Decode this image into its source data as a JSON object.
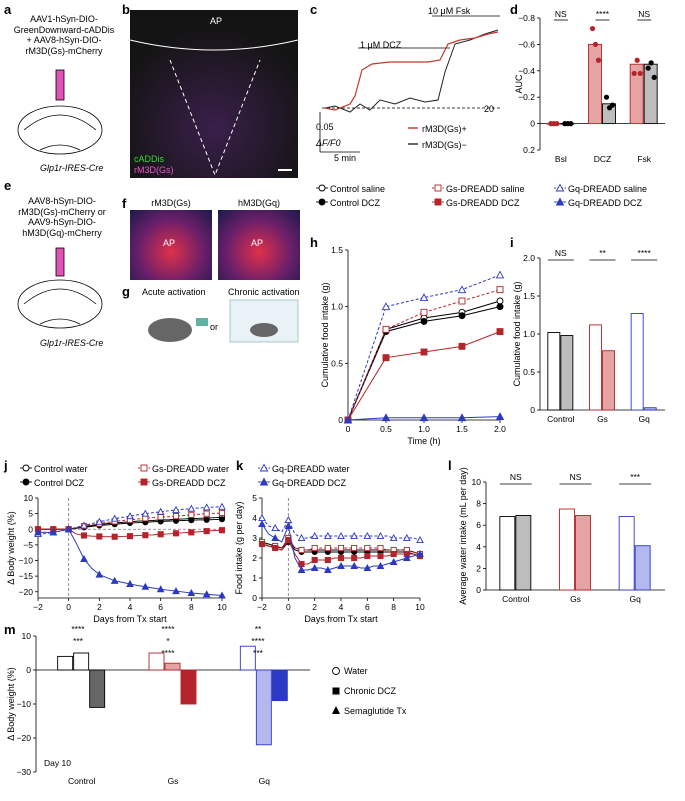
{
  "panel_letters": [
    "a",
    "b",
    "c",
    "d",
    "e",
    "f",
    "g",
    "h",
    "i",
    "j",
    "k",
    "l",
    "m"
  ],
  "a": {
    "virus_lines": [
      "AAV1-hSyn-DIO-",
      "GreenDownward-cADDis",
      "+ AAV8-hSyn-DIO-",
      "rM3D(Gs)-mCherry"
    ],
    "mouse": "Glp1r-IRES-Cre"
  },
  "b": {
    "region": "AP",
    "label1": "cADDis",
    "label2": "rM3D(Gs)"
  },
  "c": {
    "dcz_label": "1 μM DCZ",
    "fsk_label": "10 μM Fsk",
    "scale_y": "0.05",
    "scale_unit": "ΔF/F0",
    "scale_x": "5 min",
    "legend": [
      "rM3D(Gs)+",
      "rM3D(Gs)−"
    ],
    "right_tick": "20",
    "colors": {
      "pos": "#c0392b",
      "neg": "#222222"
    }
  },
  "d": {
    "ylabel": "AUC",
    "yticks": [
      "−0.8",
      "−0.6",
      "−0.4",
      "−0.2",
      "0",
      "0.2"
    ],
    "categories": [
      "Bsl",
      "DCZ",
      "Fsk"
    ],
    "sig": [
      "NS",
      "****",
      "NS"
    ],
    "bars_pos": [
      0.0,
      -0.6,
      -0.45
    ],
    "bars_neg": [
      0.0,
      -0.15,
      -0.45
    ],
    "points_pos": [
      [
        0,
        0,
        0
      ],
      [
        -0.72,
        -0.6,
        -0.48
      ],
      [
        -0.38,
        -0.48,
        -0.38
      ]
    ],
    "points_neg": [
      [
        0,
        0,
        0
      ],
      [
        -0.2,
        -0.12,
        -0.14
      ],
      [
        -0.42,
        -0.46,
        -0.35
      ]
    ]
  },
  "e": {
    "virus_lines": [
      "AAV8-hSyn-DIO-",
      "rM3D(Gs)-mCherry or",
      "AAV9-hSyn-DIO-",
      "hM3D(Gq)-mCherry"
    ],
    "mouse": "Glp1r-IRES-Cre"
  },
  "f": {
    "titles": [
      "rM3D(Gs)",
      "hM3D(Gq)"
    ],
    "region": "AP"
  },
  "g": {
    "acute": "Acute activation",
    "or": "or",
    "chronic": "Chronic activation"
  },
  "legend_hi": [
    "Control saline",
    "Control DCZ",
    "Gs-DREADD saline",
    "Gs-DREADD DCZ",
    "Gq-DREADD saline",
    "Gq-DREADD DCZ"
  ],
  "h": {
    "ylabel": "Cumulative food intake (g)",
    "xlabel": "Time (h)",
    "xticks": [
      "0",
      "0.5",
      "1.0",
      "1.5",
      "2.0"
    ],
    "yticks": [
      "0",
      "0.5",
      "1.0",
      "1.5"
    ],
    "x": [
      0,
      0.5,
      1.0,
      1.5,
      2.0
    ],
    "series": [
      {
        "values": [
          0,
          0.8,
          0.9,
          0.95,
          1.05
        ]
      },
      {
        "values": [
          0,
          0.78,
          0.87,
          0.92,
          1.0
        ]
      },
      {
        "values": [
          0,
          0.8,
          0.95,
          1.05,
          1.15
        ]
      },
      {
        "values": [
          0,
          0.55,
          0.6,
          0.65,
          0.78
        ]
      },
      {
        "values": [
          0,
          1.0,
          1.08,
          1.15,
          1.28
        ]
      },
      {
        "values": [
          0,
          0.02,
          0.02,
          0.02,
          0.03
        ]
      }
    ]
  },
  "i": {
    "ylabel": "Cumulative food intake (g)",
    "yticks": [
      "0",
      "0.5",
      "1.0",
      "1.5",
      "2.0"
    ],
    "groups": [
      "Control",
      "Gs",
      "Gq"
    ],
    "sig": [
      "NS",
      "**",
      "****"
    ],
    "bars": [
      [
        1.02,
        0.98
      ],
      [
        1.12,
        0.78
      ],
      [
        1.27,
        0.03
      ]
    ]
  },
  "legend_jk": [
    "Control water",
    "Control DCZ",
    "Gs-DREADD water",
    "Gs-DREADD DCZ",
    "Gq-DREADD water",
    "Gq-DREADD DCZ"
  ],
  "j": {
    "ylabel": "Δ Body weight (%)",
    "xlabel": "Days from Tx start",
    "xticks": [
      "−2",
      "0",
      "2",
      "4",
      "6",
      "8",
      "10"
    ],
    "yticks": [
      "−20",
      "−15",
      "−10",
      "−5",
      "0",
      "5",
      "10"
    ],
    "x": [
      -2,
      -1.5,
      -1,
      -0.5,
      0,
      0.5,
      1,
      1.5,
      2,
      2.5,
      3,
      3.5,
      4,
      4.5,
      5,
      5.5,
      6,
      6.5,
      7,
      7.5,
      8,
      8.5,
      9,
      9.5,
      10
    ],
    "series": [
      {
        "values": [
          0,
          0,
          0,
          0,
          0,
          0.4,
          0.8,
          1.2,
          1.5,
          1.8,
          2,
          2.2,
          2.4,
          2.6,
          2.7,
          2.8,
          3,
          3,
          3.2,
          3.3,
          3.4,
          3.5,
          3.6,
          3.7,
          3.8
        ]
      },
      {
        "values": [
          0,
          0,
          0,
          0,
          0,
          0.3,
          0.6,
          0.9,
          1.2,
          1.4,
          1.6,
          1.8,
          2,
          2.1,
          2.2,
          2.4,
          2.5,
          2.6,
          2.7,
          2.8,
          2.9,
          3,
          3,
          3.1,
          3.2
        ]
      },
      {
        "values": [
          0,
          0,
          0,
          0,
          0,
          0.5,
          1,
          1.4,
          1.8,
          2.2,
          2.5,
          2.8,
          3,
          3.3,
          3.5,
          3.7,
          3.9,
          4,
          4.2,
          4.4,
          4.6,
          4.8,
          5,
          5.1,
          5.2
        ]
      },
      {
        "values": [
          0,
          0,
          0,
          0,
          0,
          -1.5,
          -2,
          -2.2,
          -2.3,
          -2.4,
          -2.4,
          -2.3,
          -2.2,
          -2,
          -1.9,
          -1.8,
          -1.6,
          -1.5,
          -1.3,
          -1.1,
          -1,
          -0.8,
          -0.6,
          -0.4,
          -0.3
        ]
      },
      {
        "values": [
          -1.5,
          -1.4,
          -1,
          -0.5,
          0,
          0.6,
          1.2,
          1.8,
          2.4,
          2.9,
          3.4,
          3.8,
          4.2,
          4.6,
          5,
          5.3,
          5.6,
          5.9,
          6.2,
          6.4,
          6.6,
          6.8,
          7,
          7.1,
          7.2
        ]
      },
      {
        "values": [
          -1,
          -1,
          -1,
          -0.5,
          0,
          -4.5,
          -9.5,
          -12.5,
          -14.5,
          -15.5,
          -16.5,
          -17,
          -17.5,
          -18,
          -18.4,
          -18.8,
          -19.2,
          -19.5,
          -19.8,
          -20.1,
          -20.4,
          -20.6,
          -20.8,
          -21,
          -21.2
        ]
      }
    ]
  },
  "k": {
    "ylabel": "Food intake (g per day)",
    "xlabel": "Days from Tx start",
    "xticks": [
      "−2",
      "0",
      "2",
      "4",
      "6",
      "8",
      "10"
    ],
    "yticks": [
      "0",
      "1",
      "2",
      "3",
      "4",
      "5"
    ],
    "x": [
      -2,
      -1.5,
      -1,
      -0.5,
      0,
      0.5,
      1,
      1.5,
      2,
      2.5,
      3,
      3.5,
      4,
      4.5,
      5,
      5.5,
      6,
      6.5,
      7,
      7.5,
      8,
      8.5,
      9,
      9.5,
      10
    ],
    "series": [
      {
        "values": [
          2.8,
          2.7,
          2.6,
          2.5,
          2.9,
          2.5,
          2.4,
          2.4,
          2.4,
          2.4,
          2.4,
          2.4,
          2.4,
          2.4,
          2.4,
          2.4,
          2.4,
          2.4,
          2.4,
          2.4,
          2.4,
          2.4,
          2.4,
          2.3,
          2.2
        ]
      },
      {
        "values": [
          2.7,
          2.6,
          2.5,
          2.4,
          2.8,
          2.4,
          2.3,
          2.3,
          2.3,
          2.3,
          2.3,
          2.3,
          2.3,
          2.3,
          2.3,
          2.3,
          2.3,
          2.3,
          2.3,
          2.3,
          2.3,
          2.3,
          2.3,
          2.2,
          2.1
        ]
      },
      {
        "values": [
          2.8,
          2.6,
          2.6,
          2.5,
          3.0,
          2.5,
          2.4,
          2.4,
          2.5,
          2.5,
          2.5,
          2.5,
          2.5,
          2.5,
          2.5,
          2.5,
          2.5,
          2.5,
          2.5,
          2.4,
          2.4,
          2.4,
          2.4,
          2.3,
          2.2
        ]
      },
      {
        "values": [
          2.7,
          2.6,
          2.5,
          2.4,
          2.9,
          2.2,
          1.7,
          1.7,
          1.9,
          1.9,
          1.9,
          2.0,
          2.0,
          2.0,
          2.0,
          2.0,
          2.1,
          2.1,
          2.1,
          2.1,
          2.2,
          2.2,
          2.2,
          2.2,
          2.1
        ]
      },
      {
        "values": [
          4.0,
          3.6,
          3.5,
          3.3,
          3.9,
          3.2,
          3.0,
          3.0,
          3.1,
          3.1,
          3.1,
          3.1,
          3.1,
          3.1,
          3.1,
          3.1,
          3.1,
          3.1,
          3.1,
          3.1,
          3.0,
          3.0,
          3.0,
          3.0,
          2.9
        ]
      },
      {
        "values": [
          3.7,
          3.2,
          3.0,
          2.8,
          3.6,
          2.0,
          1.4,
          1.4,
          1.5,
          1.5,
          1.4,
          1.5,
          1.6,
          1.6,
          1.6,
          1.5,
          1.5,
          1.6,
          1.6,
          1.7,
          1.8,
          1.9,
          2.0,
          2.1,
          2.2
        ]
      }
    ]
  },
  "l": {
    "ylabel": "Average water intake (mL per day)",
    "yticks": [
      "0",
      "2",
      "4",
      "6",
      "8",
      "10"
    ],
    "groups": [
      "Control",
      "Gs",
      "Gq"
    ],
    "sig": [
      "NS",
      "NS",
      "***"
    ],
    "bars": [
      [
        6.8,
        6.9
      ],
      [
        7.5,
        6.9
      ],
      [
        6.8,
        4.1
      ]
    ]
  },
  "m": {
    "ylabel": "Δ Body weight (%)",
    "yticks": [
      "−30",
      "−20",
      "−10",
      "0",
      "10"
    ],
    "groups": [
      "Control",
      "Gs",
      "Gq"
    ],
    "day": "Day 10",
    "bars": [
      [
        4,
        5,
        -11
      ],
      [
        5,
        2,
        -10
      ],
      [
        7,
        -22,
        -9
      ]
    ],
    "sig_control": [
      "****",
      "***"
    ],
    "sig_gs": [
      "****",
      "*",
      "****"
    ],
    "sig_gq": [
      "**",
      "****",
      "***"
    ],
    "legend": [
      "Water",
      "Chronic DCZ",
      "Semaglutide Tx"
    ]
  },
  "colors": {
    "control": "#000000",
    "gs": "#b3242b",
    "gq": "#2c39c2",
    "gs_light": "#e5a3a3",
    "gq_light": "#b3b8ee",
    "grey": "#bdbdbd"
  }
}
